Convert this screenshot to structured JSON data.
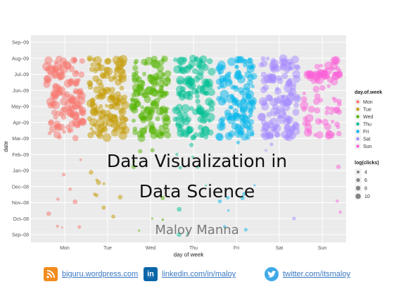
{
  "chart_data": {
    "type": "scatter",
    "xlabel": "day of week",
    "ylabel": "date",
    "categories": [
      "Mon",
      "Tue",
      "Wed",
      "Thu",
      "Fri",
      "Sat",
      "Sun"
    ],
    "y_ticks": [
      "Sep–08",
      "Oct–08",
      "Nov–08",
      "Dec–08",
      "Jan–09",
      "Feb–09",
      "Mar–09",
      "Apr–09",
      "May–09",
      "Jun–09",
      "Jul–09",
      "Aug–09",
      "Sep–09"
    ],
    "ylim": [
      "Sep–08",
      "Sep–09"
    ],
    "grid": true,
    "legend_position": "right",
    "color_legend": {
      "title": "day.of.week",
      "items": [
        {
          "label": "Mon",
          "color": "#f8766d"
        },
        {
          "label": "Tue",
          "color": "#c49a00"
        },
        {
          "label": "Wed",
          "color": "#53b400"
        },
        {
          "label": "Thu",
          "color": "#00c094"
        },
        {
          "label": "Fri",
          "color": "#00b6eb"
        },
        {
          "label": "Sat",
          "color": "#a58aff"
        },
        {
          "label": "Sun",
          "color": "#fb61d7"
        }
      ]
    },
    "size_legend": {
      "title": "log(clicks)",
      "items": [
        4,
        6,
        8,
        10
      ]
    },
    "point_opacity": 0.5,
    "dense_range_note": "dense points from Mar–09 to Aug–09, sparse points Sep–08 to Feb–09"
  },
  "slide": {
    "title_line1": "Data Visualization in",
    "title_line2": "Data Science",
    "author": "Maloy Manna"
  },
  "footer": {
    "blog": "biguru.wordpress.com",
    "linkedin": "linkedin.com/in/maloy",
    "twitter": "twitter.com/itsmaloy",
    "icons": [
      "rss-icon",
      "linkedin-icon",
      "twitter-icon"
    ]
  }
}
